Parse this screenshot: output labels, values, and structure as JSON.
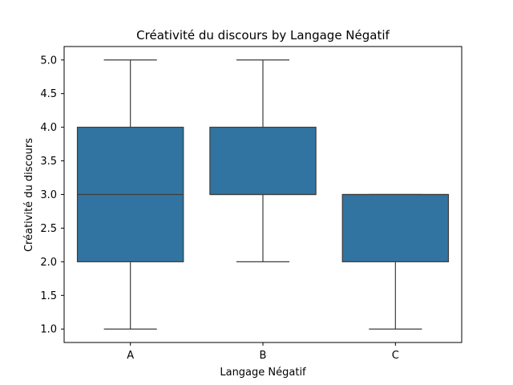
{
  "chart_data": {
    "type": "box",
    "title": "Créativité du discours by Langage Négatif",
    "xlabel": "Langage Négatif",
    "ylabel": "Créativité du discours",
    "categories": [
      "A",
      "B",
      "C"
    ],
    "boxes": [
      {
        "category": "A",
        "min": 1.0,
        "q1": 2.0,
        "median": 3.0,
        "q3": 4.0,
        "max": 5.0
      },
      {
        "category": "B",
        "min": 2.0,
        "q1": 3.0,
        "median": 3.0,
        "q3": 4.0,
        "max": 5.0
      },
      {
        "category": "C",
        "min": 1.0,
        "q1": 2.0,
        "median": 3.0,
        "q3": 3.0,
        "max": 3.0
      }
    ],
    "yticks": [
      "1.0",
      "1.5",
      "2.0",
      "2.5",
      "3.0",
      "3.5",
      "4.0",
      "4.5",
      "5.0"
    ],
    "ylim": [
      0.8,
      5.2
    ],
    "grid": false,
    "colors": {
      "box_fill": "#3274a1",
      "line": "#3d3d3d"
    }
  }
}
